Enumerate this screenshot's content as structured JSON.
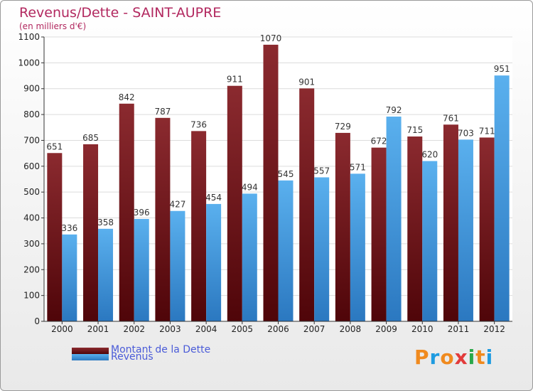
{
  "title": "Revenus/Dette - SAINT-AUPRE",
  "subtitle": "(en milliers d'€)",
  "logo": {
    "text": "Proxiti",
    "letters": [
      {
        "ch": "P",
        "color": "#f08a1e"
      },
      {
        "ch": "r",
        "color": "#1e9be0"
      },
      {
        "ch": "o",
        "color": "#f08a1e"
      },
      {
        "ch": "x",
        "color": "#e23b3b"
      },
      {
        "ch": "i",
        "color": "#2aa84a"
      },
      {
        "ch": "t",
        "color": "#f08a1e"
      },
      {
        "ch": "i",
        "color": "#1e9be0"
      }
    ]
  },
  "chart_data": {
    "type": "bar",
    "title": "Revenus/Dette - SAINT-AUPRE",
    "subtitle": "(en milliers d'€)",
    "categories": [
      "2000",
      "2001",
      "2002",
      "2003",
      "2004",
      "2005",
      "2006",
      "2007",
      "2008",
      "2009",
      "2010",
      "2011",
      "2012"
    ],
    "series": [
      {
        "name": "Montant de la Dette",
        "color": "#6e1216",
        "values": [
          651,
          685,
          842,
          787,
          736,
          911,
          1070,
          901,
          729,
          672,
          715,
          761,
          711
        ]
      },
      {
        "name": "Revenus",
        "color": "#4aa2e4",
        "values": [
          336,
          358,
          396,
          427,
          454,
          494,
          545,
          557,
          571,
          792,
          620,
          703,
          951
        ]
      }
    ],
    "ylim": [
      0,
      1100
    ],
    "yticks": [
      0,
      100,
      200,
      300,
      400,
      500,
      600,
      700,
      800,
      900,
      1000,
      1100
    ],
    "grid": true,
    "legend_position": "bottom-left"
  }
}
